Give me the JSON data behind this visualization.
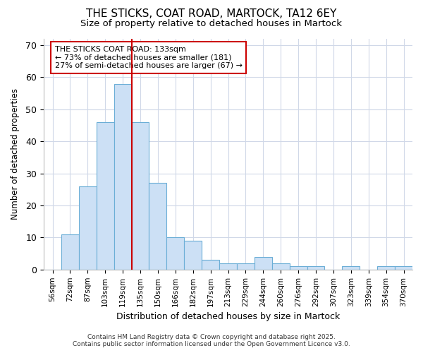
{
  "title_line1": "THE STICKS, COAT ROAD, MARTOCK, TA12 6EY",
  "title_line2": "Size of property relative to detached houses in Martock",
  "xlabel": "Distribution of detached houses by size in Martock",
  "ylabel": "Number of detached properties",
  "categories": [
    "56sqm",
    "72sqm",
    "87sqm",
    "103sqm",
    "119sqm",
    "135sqm",
    "150sqm",
    "166sqm",
    "182sqm",
    "197sqm",
    "213sqm",
    "229sqm",
    "244sqm",
    "260sqm",
    "276sqm",
    "292sqm",
    "307sqm",
    "323sqm",
    "339sqm",
    "354sqm",
    "370sqm"
  ],
  "values": [
    0,
    11,
    26,
    46,
    58,
    46,
    27,
    10,
    9,
    3,
    2,
    2,
    4,
    2,
    1,
    1,
    0,
    1,
    0,
    1,
    1
  ],
  "bar_color": "#cce0f5",
  "bar_edge_color": "#6baed6",
  "vline_x_index": 4.5,
  "vline_color": "#cc0000",
  "annotation_title": "THE STICKS COAT ROAD: 133sqm",
  "annotation_line1": "← 73% of detached houses are smaller (181)",
  "annotation_line2": "27% of semi-detached houses are larger (67) →",
  "annotation_box_color": "#cc0000",
  "ylim": [
    0,
    72
  ],
  "yticks": [
    0,
    10,
    20,
    30,
    40,
    50,
    60,
    70
  ],
  "footer_line1": "Contains HM Land Registry data © Crown copyright and database right 2025.",
  "footer_line2": "Contains public sector information licensed under the Open Government Licence v3.0.",
  "background_color": "#ffffff",
  "plot_background_color": "#ffffff",
  "grid_color": "#d0d8e8"
}
